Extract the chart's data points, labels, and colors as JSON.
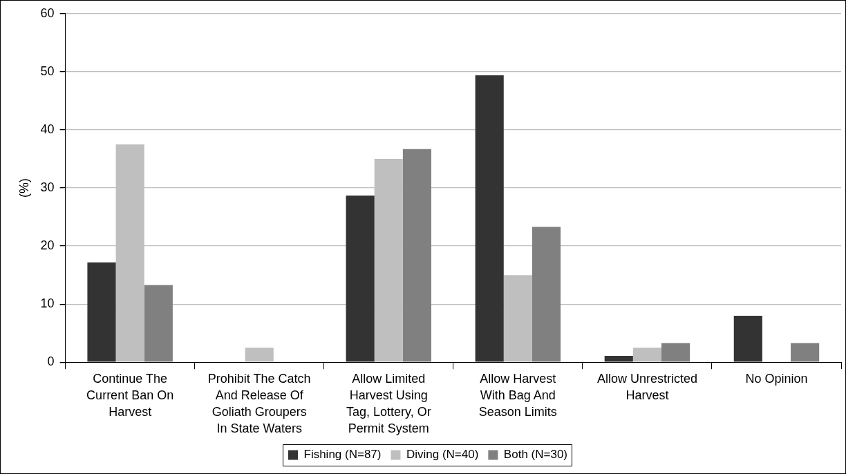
{
  "chart_data": {
    "type": "bar",
    "ylabel": "(%)",
    "categories": [
      "Continue The Current Ban On Harvest",
      "Prohibit The Catch And Release Of Goliath Groupers In State Waters",
      "Allow Limited Harvest Using Tag, Lottery, Or Permit System",
      "Allow Harvest With Bag And Season Limits",
      "Allow Unrestricted Harvest",
      "No Opinion"
    ],
    "series": [
      {
        "name": "Fishing (N=87)",
        "color": "#333333",
        "values": [
          17.2,
          0,
          28.7,
          49.4,
          1.1,
          8.0
        ]
      },
      {
        "name": "Diving (N=40)",
        "color": "#bfbfbf",
        "values": [
          37.5,
          2.5,
          35.0,
          15.0,
          2.5,
          0
        ]
      },
      {
        "name": "Both (N=30)",
        "color": "#808080",
        "values": [
          13.3,
          0,
          36.7,
          23.3,
          3.3,
          3.3
        ]
      }
    ],
    "ylim": [
      0,
      60
    ],
    "yticks": [
      0,
      10,
      20,
      30,
      40,
      50,
      60
    ],
    "grid": "y",
    "legend": "bottom"
  }
}
